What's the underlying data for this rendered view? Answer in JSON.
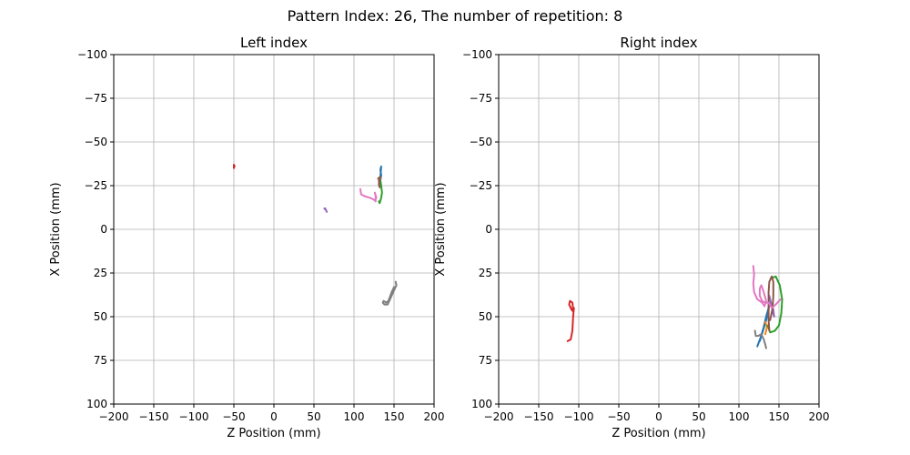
{
  "figure_title": "Pattern Index: 26, The number of repetition: 8",
  "chart_data": [
    {
      "type": "line",
      "title": "Left index",
      "xlabel": "Z Position (mm)",
      "ylabel": "X Position (mm)",
      "xlim": [
        -200,
        200
      ],
      "ylim": [
        -100,
        100
      ],
      "y_inverted": true,
      "grid": true,
      "xticks": [
        -200,
        -150,
        -100,
        -50,
        0,
        50,
        100,
        150,
        200
      ],
      "yticks": [
        -100,
        -75,
        -50,
        -25,
        0,
        25,
        50,
        75,
        100
      ],
      "xtick_labels": [
        "−200",
        "−150",
        "−100",
        "−50",
        "0",
        "50",
        "100",
        "150",
        "200"
      ],
      "ytick_labels": [
        "−100",
        "−75",
        "−50",
        "−25",
        "0",
        "25",
        "50",
        "75",
        "100"
      ],
      "series": [
        {
          "color": "#1f77b4",
          "points": [
            [
              133,
              -28
            ],
            [
              134,
              -31
            ],
            [
              133,
              -34
            ],
            [
              134,
              -36
            ],
            [
              133,
              -30
            ],
            [
              132,
              -28
            ]
          ]
        },
        {
          "color": "#ff7f0e",
          "points": [
            [
              132,
              -27
            ],
            [
              133,
              -29
            ],
            [
              132,
              -30
            ]
          ]
        },
        {
          "color": "#2ca02c",
          "points": [
            [
              133,
              -28
            ],
            [
              134,
              -25
            ],
            [
              135,
              -21
            ],
            [
              134,
              -18
            ],
            [
              132,
              -15
            ],
            [
              131,
              -16
            ]
          ]
        },
        {
          "color": "#d62728",
          "points": [
            [
              -50,
              -35
            ],
            [
              -50,
              -37
            ],
            [
              -49,
              -36
            ]
          ]
        },
        {
          "color": "#9467bd",
          "points": [
            [
              63,
              -12
            ],
            [
              65,
              -11
            ],
            [
              66,
              -10
            ],
            [
              64,
              -12
            ]
          ]
        },
        {
          "color": "#8c564b",
          "points": [
            [
              130,
              -29
            ],
            [
              133,
              -30
            ],
            [
              131,
              -26
            ],
            [
              132,
              -24
            ],
            [
              131,
              -28
            ]
          ]
        },
        {
          "color": "#e377c2",
          "points": [
            [
              108,
              -23
            ],
            [
              109,
              -20
            ],
            [
              113,
              -19
            ],
            [
              120,
              -18
            ],
            [
              125,
              -17
            ],
            [
              127,
              -16
            ],
            [
              127,
              -19
            ],
            [
              126,
              -21
            ],
            [
              128,
              -18
            ]
          ]
        },
        {
          "color": "#7f7f7f",
          "points": [
            [
              152,
              30
            ],
            [
              153,
              32
            ],
            [
              149,
              36
            ],
            [
              145,
              40
            ],
            [
              142,
              43
            ],
            [
              138,
              43
            ],
            [
              136,
              42
            ],
            [
              137,
              41
            ],
            [
              140,
              42
            ],
            [
              143,
              41
            ],
            [
              147,
              36
            ],
            [
              150,
              33
            ]
          ]
        }
      ]
    },
    {
      "type": "line",
      "title": "Right index",
      "xlabel": "Z Position (mm)",
      "ylabel": "X Position (mm)",
      "xlim": [
        -200,
        200
      ],
      "ylim": [
        -100,
        100
      ],
      "y_inverted": true,
      "grid": true,
      "xticks": [
        -200,
        -150,
        -100,
        -50,
        0,
        50,
        100,
        150,
        200
      ],
      "yticks": [
        -100,
        -75,
        -50,
        -25,
        0,
        25,
        50,
        75,
        100
      ],
      "xtick_labels": [
        "−200",
        "−150",
        "−100",
        "−50",
        "0",
        "50",
        "100",
        "150",
        "200"
      ],
      "ytick_labels": [
        "−100",
        "−75",
        "−50",
        "−25",
        "0",
        "25",
        "50",
        "75",
        "100"
      ],
      "series": [
        {
          "color": "#1f77b4",
          "points": [
            [
              123,
              67
            ],
            [
              127,
              62
            ],
            [
              131,
              56
            ],
            [
              134,
              50
            ],
            [
              137,
              45
            ],
            [
              138,
              42
            ],
            [
              137,
              46
            ],
            [
              134,
              52
            ],
            [
              130,
              58
            ],
            [
              126,
              64
            ]
          ]
        },
        {
          "color": "#ff7f0e",
          "points": [
            [
              133,
              60
            ],
            [
              135,
              56
            ],
            [
              133,
              53
            ]
          ]
        },
        {
          "color": "#2ca02c",
          "points": [
            [
              140,
              28
            ],
            [
              146,
              27
            ],
            [
              151,
              32
            ],
            [
              154,
              40
            ],
            [
              153,
              48
            ],
            [
              150,
              55
            ],
            [
              145,
              58
            ],
            [
              139,
              59
            ],
            [
              136,
              55
            ]
          ]
        },
        {
          "color": "#d62728",
          "points": [
            [
              -114,
              64
            ],
            [
              -110,
              63
            ],
            [
              -108,
              58
            ],
            [
              -107,
              50
            ],
            [
              -106,
              45
            ],
            [
              -107,
              47
            ],
            [
              -109,
              46
            ],
            [
              -112,
              43
            ],
            [
              -111,
              41
            ],
            [
              -108,
              42
            ],
            [
              -107,
              46
            ]
          ]
        },
        {
          "color": "#9467bd",
          "points": [
            [
              138,
              38
            ],
            [
              140,
              42
            ],
            [
              143,
              46
            ],
            [
              144,
              50
            ],
            [
              142,
              47
            ]
          ]
        },
        {
          "color": "#8c564b",
          "points": [
            [
              138,
              58
            ],
            [
              137,
              52
            ],
            [
              137,
              44
            ],
            [
              137,
              36
            ],
            [
              138,
              30
            ],
            [
              141,
              27
            ],
            [
              143,
              30
            ],
            [
              143,
              38
            ],
            [
              142,
              45
            ],
            [
              139,
              52
            ]
          ]
        },
        {
          "color": "#e377c2",
          "points": [
            [
              118,
              21
            ],
            [
              119,
              26
            ],
            [
              118,
              31
            ],
            [
              119,
              36
            ],
            [
              123,
              40
            ],
            [
              129,
              42
            ],
            [
              132,
              44
            ],
            [
              134,
              41
            ],
            [
              131,
              36
            ],
            [
              128,
              32
            ],
            [
              126,
              34
            ],
            [
              126,
              38
            ],
            [
              129,
              41
            ],
            [
              133,
              42
            ],
            [
              137,
              42
            ],
            [
              141,
              45
            ],
            [
              146,
              43
            ],
            [
              152,
              40
            ]
          ]
        },
        {
          "color": "#7f7f7f",
          "points": [
            [
              120,
              58
            ],
            [
              121,
              61
            ],
            [
              124,
              61
            ],
            [
              128,
              60
            ],
            [
              131,
              63
            ],
            [
              133,
              66
            ],
            [
              134,
              68
            ]
          ]
        }
      ]
    }
  ]
}
